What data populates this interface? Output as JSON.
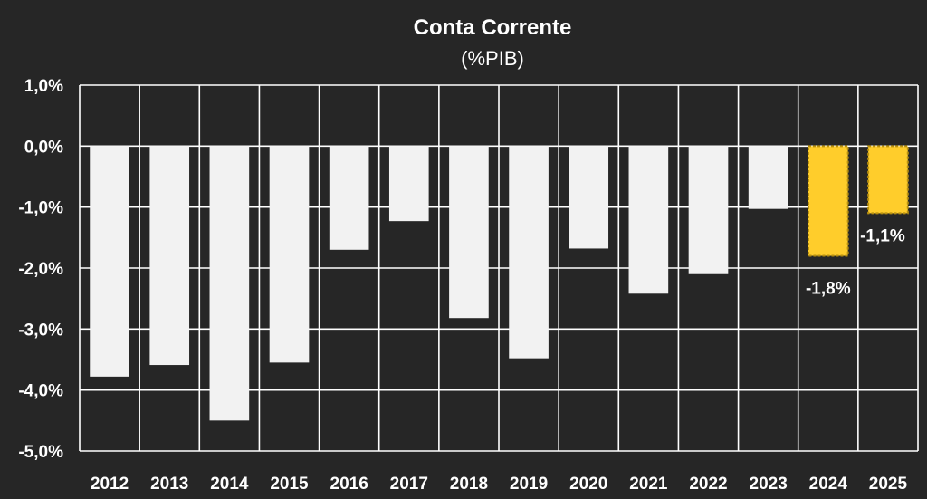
{
  "chart_data": {
    "type": "bar",
    "title": "Conta Corrente",
    "subtitle": "(%PIB)",
    "xlabel": "",
    "ylabel": "",
    "categories": [
      "2012",
      "2013",
      "2014",
      "2015",
      "2016",
      "2017",
      "2018",
      "2019",
      "2020",
      "2021",
      "2022",
      "2023",
      "2024",
      "2025"
    ],
    "values": [
      -3.78,
      -3.59,
      -4.5,
      -3.55,
      -1.7,
      -1.23,
      -2.82,
      -3.48,
      -1.68,
      -2.42,
      -2.1,
      -1.03,
      -1.8,
      -1.1
    ],
    "forecast": [
      false,
      false,
      false,
      false,
      false,
      false,
      false,
      false,
      false,
      false,
      false,
      false,
      true,
      true
    ],
    "data_labels": [
      "",
      "",
      "",
      "",
      "",
      "",
      "",
      "",
      "",
      "",
      "",
      "",
      "-1,8%",
      "-1,1%"
    ],
    "ylim": [
      -5,
      1
    ],
    "yticks": [
      1,
      0,
      -1,
      -2,
      -3,
      -4,
      -5
    ],
    "ytick_labels": [
      "1,0%",
      "0,0%",
      "-1,0%",
      "-2,0%",
      "-3,0%",
      "-4,0%",
      "-5,0%"
    ],
    "grid": true,
    "colors": {
      "background": "#262626",
      "bar": "#f2f2f2",
      "forecast_bar": "#ffcd2b",
      "forecast_border": "#b8900f",
      "grid": "#ffffff",
      "text": "#ffffff"
    }
  }
}
